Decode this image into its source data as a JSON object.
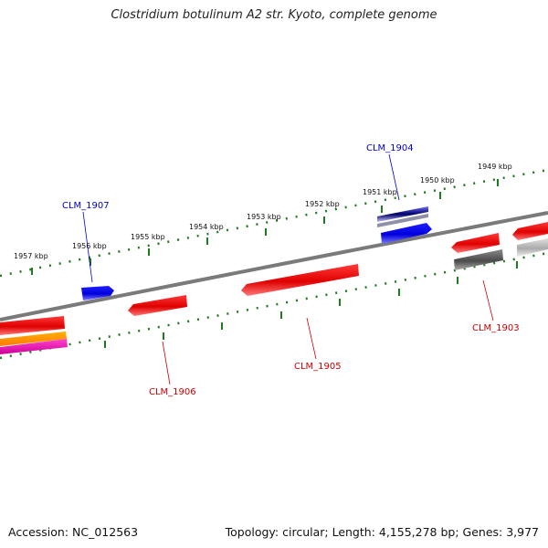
{
  "title": "Clostridium botulinum A2 str. Kyoto, complete genome",
  "footer": {
    "accession": "Accession: NC_012563",
    "summary": "Topology: circular; Length: 4,155,278 bp; Genes: 3,977"
  },
  "colors": {
    "backbone": "#7a7a7a",
    "scale": "#1f7a1f",
    "forward_gene": "#0000ee",
    "reverse_gene": "#ee0000",
    "label_forward": "#0000cc",
    "label_reverse": "#cc0000"
  },
  "scale_labels": [
    "1957 kbp",
    "1956 kbp",
    "1955 kbp",
    "1954 kbp",
    "1953 kbp",
    "1952 kbp",
    "1951 kbp",
    "1950 kbp",
    "1949 kbp"
  ],
  "gene_labels": [
    {
      "id": "CLM_1907",
      "strand": "forward"
    },
    {
      "id": "CLM_1904",
      "strand": "forward"
    },
    {
      "id": "CLM_1906",
      "strand": "reverse"
    },
    {
      "id": "CLM_1905",
      "strand": "reverse"
    },
    {
      "id": "CLM_1903",
      "strand": "reverse"
    }
  ]
}
